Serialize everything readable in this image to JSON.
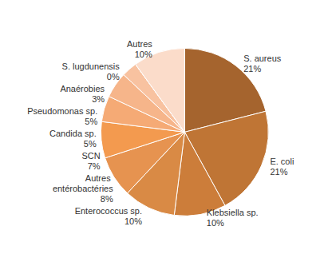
{
  "chart_data": {
    "type": "pie",
    "categories": [
      "S. aureus",
      "E. coli",
      "Klebsiella sp.",
      "Enterococcus sp.",
      "Autres entérobactéries",
      "SCN",
      "Candida sp.",
      "Pseudomonas sp.",
      "Anaérobies",
      "S. lugdunensis",
      "Autres"
    ],
    "values": [
      21,
      21,
      10,
      10,
      8,
      7,
      5,
      5,
      3,
      0,
      10
    ],
    "value_labels": [
      "21%",
      "21%",
      "10%",
      "10%",
      "8%",
      "7%",
      "5%",
      "5%",
      "3%",
      "0%",
      "10%"
    ],
    "colors": [
      "#a5642e",
      "#bf7535",
      "#cc7d3a",
      "#d98a45",
      "#e69350",
      "#f39a4f",
      "#f5aa75",
      "#f6b58a",
      "#f8c2a0",
      "#f9cdb0",
      "#fbdcca"
    ],
    "data_labels": true
  }
}
